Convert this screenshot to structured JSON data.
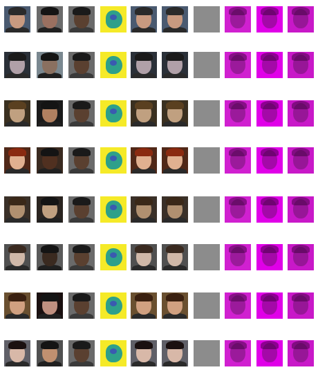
{
  "grid": {
    "rows": 8,
    "cols": 10,
    "columns": [
      {
        "kind": "photo"
      },
      {
        "kind": "photo-alt"
      },
      {
        "kind": "noisy"
      },
      {
        "kind": "mask"
      },
      {
        "kind": "photo"
      },
      {
        "kind": "photo"
      },
      {
        "kind": "gray"
      },
      {
        "kind": "magenta"
      },
      {
        "kind": "magenta"
      },
      {
        "kind": "magenta"
      }
    ],
    "row_colors": [
      {
        "bg": "#4a5a70",
        "skin": "#c89a80",
        "hair": "#2a2a2a",
        "alt_bg": "#6a6a6a",
        "alt_skin": "#9a7060"
      },
      {
        "bg": "#2a3038",
        "skin": "#b0a0a8",
        "hair": "#1a1a1a",
        "alt_bg": "#7a8890",
        "alt_skin": "#8a7060"
      },
      {
        "bg": "#3a3020",
        "skin": "#c0a080",
        "hair": "#5a4020",
        "alt_bg": "#1a1a1a",
        "alt_skin": "#b08060"
      },
      {
        "bg": "#502818",
        "skin": "#e0b090",
        "hair": "#8a2a10",
        "alt_bg": "#3a2a20",
        "alt_skin": "#503020"
      },
      {
        "bg": "#3a3028",
        "skin": "#b09070",
        "hair": "#3a2818",
        "alt_bg": "#2a2420",
        "alt_skin": "#c0a080"
      },
      {
        "bg": "#505050",
        "skin": "#d0b8a8",
        "hair": "#3a2a20",
        "alt_bg": "#5a5a5a",
        "alt_skin": "#3a2a20"
      },
      {
        "bg": "#6a5030",
        "skin": "#d0a080",
        "hair": "#3a2010",
        "alt_bg": "#1a1010",
        "alt_skin": "#c09080"
      },
      {
        "bg": "#606068",
        "skin": "#d8b8a8",
        "hair": "#1a1010",
        "alt_bg": "#505050",
        "alt_skin": "#c09070"
      }
    ],
    "mask_colors": {
      "bg": "#f5ea28",
      "blob": "#2ea08a",
      "blob2": "#3a5ab0"
    },
    "gray_color": "#8c8c8c",
    "magenta_colors": [
      "#d020d0",
      "#e000e8",
      "#c818c8"
    ]
  }
}
